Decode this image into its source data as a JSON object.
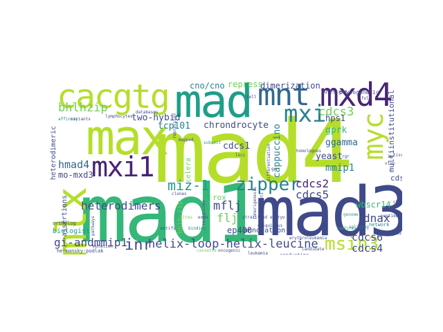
{
  "word_cloud": {
    "palette": {
      "dark_purple": "#482475",
      "indigo": "#3e4a89",
      "blue": "#31688e",
      "teal": "#26828e",
      "green_teal": "#1f9e89",
      "green": "#35b779",
      "light_green": "#6ece58",
      "yellow_green": "#b5de2b"
    },
    "words": [
      {
        "text": "mad4",
        "color": "#b5de2b"
      },
      {
        "text": "mad1",
        "color": "#35b779"
      },
      {
        "text": "mad3",
        "color": "#3e4a89"
      },
      {
        "text": "max",
        "color": "#b5de2b"
      },
      {
        "text": "mad",
        "color": "#1f9e89"
      },
      {
        "text": "cacgtg",
        "color": "#b5de2b"
      },
      {
        "text": "mnt",
        "color": "#31688e"
      },
      {
        "text": "mxd4",
        "color": "#482475"
      },
      {
        "text": "mxi1",
        "color": "#482475"
      },
      {
        "text": "mlx",
        "color": "#b5de2b"
      },
      {
        "text": "mxi",
        "color": "#26828e"
      },
      {
        "text": "myc",
        "color": "#b5de2b"
      },
      {
        "text": "zipper",
        "color": "#26828e"
      },
      {
        "text": "msin3",
        "color": "#b5de2b"
      },
      {
        "text": "bhlhzip",
        "color": "#6ece58"
      },
      {
        "text": "cdcs3",
        "color": "#6ece58"
      },
      {
        "text": "cdcs2",
        "color": "#482475"
      },
      {
        "text": "cdcs5",
        "color": "#3e4a89"
      },
      {
        "text": "cdcs6",
        "color": "#3e4a89"
      },
      {
        "text": "cdcs4",
        "color": "#3e4a89"
      },
      {
        "text": "miz-1",
        "color": "#1f9e89"
      },
      {
        "text": "hmad4",
        "color": "#31688e"
      },
      {
        "text": "heterodimers",
        "color": "#3e4a89"
      },
      {
        "text": "helix-loop-helix-leucine",
        "color": "#3e4a89"
      },
      {
        "text": "gi-andmmip1",
        "color": "#3e4a89"
      },
      {
        "text": "inr",
        "color": "#3e4a89"
      },
      {
        "text": "mmip1",
        "color": "#26828e"
      },
      {
        "text": "mflj",
        "color": "#3e4a89"
      },
      {
        "text": "flj",
        "color": "#6ece58"
      },
      {
        "text": "dnax",
        "color": "#3e4a89"
      },
      {
        "text": "two-hybid",
        "color": "#3e4a89"
      },
      {
        "text": "tcp101",
        "color": "#26828e"
      },
      {
        "text": "chrondrocyte",
        "color": "#3e4a89"
      },
      {
        "text": "cdcs1",
        "color": "#3e4a89"
      },
      {
        "text": "cappuccino",
        "color": "#26828e"
      },
      {
        "text": "ggamma",
        "color": "#31688e"
      },
      {
        "text": "gprk",
        "color": "#35b779"
      },
      {
        "text": "hps1",
        "color": "#3e4a89"
      },
      {
        "text": "yeast",
        "color": "#3e4a89"
      },
      {
        "text": "mo-mxd3",
        "color": "#3e4a89"
      },
      {
        "text": "ep400",
        "color": "#3e4a89"
      },
      {
        "text": "rox",
        "color": "#6ece58"
      },
      {
        "text": "celera",
        "color": "#6ece58"
      },
      {
        "text": "cdss",
        "color": "#3e4a89"
      },
      {
        "text": "wbscr14",
        "color": "#35b779"
      },
      {
        "text": "repress",
        "color": "#6ece58"
      },
      {
        "text": "dimerization",
        "color": "#3e4a89"
      },
      {
        "text": "cno/cno",
        "color": "#26828e"
      },
      {
        "text": "heterodimeric",
        "color": "#3e4a89"
      },
      {
        "text": "multiinstitutional",
        "color": "#3e4a89"
      },
      {
        "text": "assertions",
        "color": "#3e4a89"
      },
      {
        "text": "annotation",
        "color": "#3e4a89"
      },
      {
        "text": "biologist",
        "color": "#1f9e89"
      },
      {
        "text": "bhlh-zip",
        "color": "#6ece58"
      },
      {
        "text": "phylogenetic",
        "color": "#3e4a89"
      },
      {
        "text": "quiescent",
        "color": "#3e4a89"
      },
      {
        "text": "ortholog",
        "color": "#3e4a89"
      },
      {
        "text": "hermansky-pudlak",
        "color": "#3e4a89"
      },
      {
        "text": "network",
        "color": "#26828e"
      },
      {
        "text": "sequenced",
        "color": "#3e4a89"
      },
      {
        "text": "conducting",
        "color": "#3e4a89"
      },
      {
        "text": "databases",
        "color": "#3e4a89"
      },
      {
        "text": "lymphocytes",
        "color": "#3e4a89"
      },
      {
        "text": "recognized",
        "color": "#3e4a89"
      },
      {
        "text": "erythroleukemia",
        "color": "#3e4a89"
      },
      {
        "text": "oncogenic",
        "color": "#3e4a89"
      },
      {
        "text": "cassette",
        "color": "#6ece58"
      },
      {
        "text": "exon",
        "color": "#3e4a89"
      },
      {
        "text": "genome",
        "color": "#1f9e89"
      },
      {
        "text": "splicing",
        "color": "#26828e"
      },
      {
        "text": "leukemia",
        "color": "#3e4a89"
      },
      {
        "text": "candidate",
        "color": "#3e4a89"
      },
      {
        "text": "stratified",
        "color": "#3e4a89"
      },
      {
        "text": "embryo",
        "color": "#3e4a89"
      },
      {
        "text": "subunit",
        "color": "#1f9e89"
      },
      {
        "text": "mapped",
        "color": "#3e4a89"
      },
      {
        "text": "affinity",
        "color": "#26828e"
      },
      {
        "text": "variants",
        "color": "#3e4a89"
      },
      {
        "text": "isoforms",
        "color": "#35b779"
      },
      {
        "text": "tumorigenesis",
        "color": "#3e4a89"
      },
      {
        "text": "transcripts",
        "color": "#3e4a89"
      },
      {
        "text": "ubiquitous",
        "color": "#3e4a89"
      },
      {
        "text": "differentiation",
        "color": "#3e4a89"
      },
      {
        "text": "homologous",
        "color": "#3e4a89"
      },
      {
        "text": "loci",
        "color": "#3e4a89"
      },
      {
        "text": "peptide",
        "color": "#3e4a89"
      },
      {
        "text": "motifs",
        "color": "#3e4a89"
      },
      {
        "text": "binding",
        "color": "#26828e"
      },
      {
        "text": "clones",
        "color": "#3e4a89"
      },
      {
        "text": "sites",
        "color": "#6ece58"
      },
      {
        "text": "pathways",
        "color": "#3e4a89"
      },
      {
        "text": "repression",
        "color": "#3e4a89"
      },
      {
        "text": "vivo",
        "color": "#3e4a89"
      },
      {
        "text": "cDNA",
        "color": "#3e4a89"
      },
      {
        "text": "mutation",
        "color": "#3e4a89"
      },
      {
        "text": "cell",
        "color": "#3e4a89"
      },
      {
        "text": "tissue",
        "color": "#3e4a89"
      },
      {
        "text": "rgr",
        "color": "#3e4a89"
      },
      {
        "text": "ig",
        "color": "#3e4a89"
      },
      {
        "text": "gc",
        "color": "#3e4a89"
      },
      {
        "text": "fold",
        "color": "#3e4a89"
      }
    ]
  }
}
